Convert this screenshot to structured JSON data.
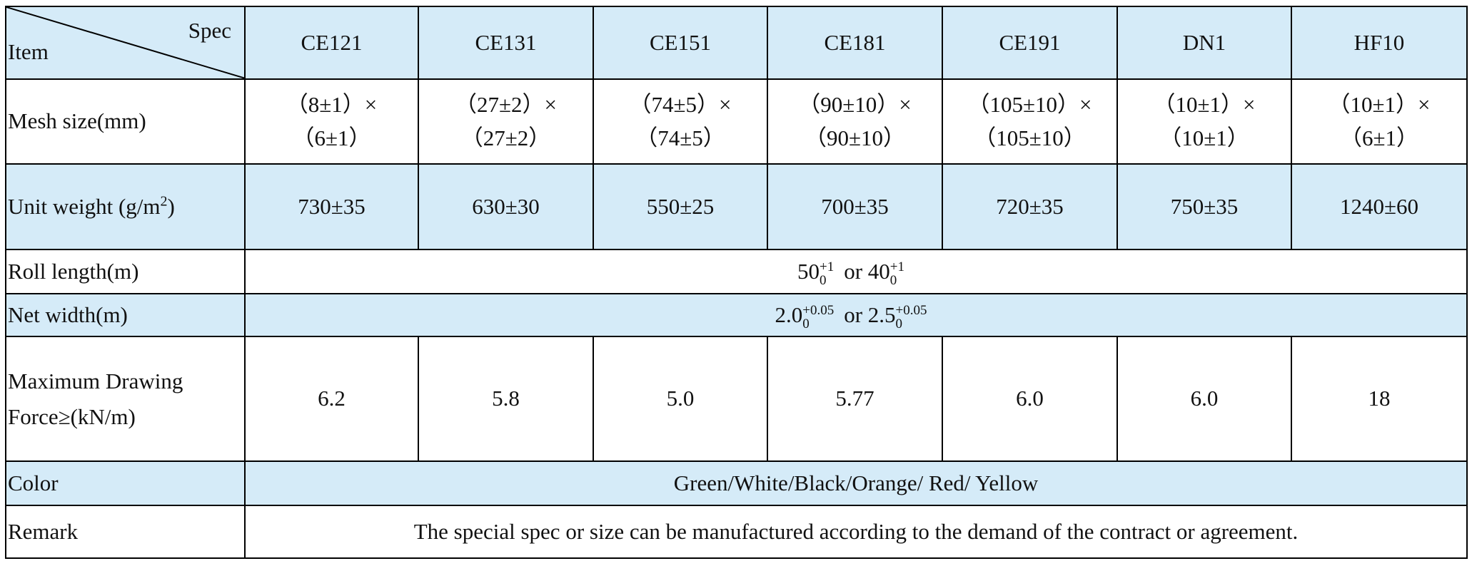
{
  "table": {
    "header": {
      "item": "Item",
      "spec": "Spec",
      "columns": [
        "CE121",
        "CE131",
        "CE151",
        "CE181",
        "CE191",
        "DN1",
        "HF10"
      ]
    },
    "rows": {
      "mesh_size": {
        "label": "Mesh size(mm)",
        "values": [
          [
            "（8±1）×",
            "（6±1）"
          ],
          [
            "（27±2）×",
            "（27±2）"
          ],
          [
            "（74±5）×",
            "（74±5）"
          ],
          [
            "（90±10）×",
            "（90±10）"
          ],
          [
            "（105±10）×",
            "（105±10）"
          ],
          [
            "（10±1）×",
            "（10±1）"
          ],
          [
            "（10±1）×",
            "（6±1）"
          ]
        ]
      },
      "unit_weight": {
        "label": "Unit weight (g/m",
        "label_sup": "2",
        "label_end": ")",
        "values": [
          "730±35",
          "630±30",
          "550±25",
          "700±35",
          "720±35",
          "750±35",
          "1240±60"
        ]
      },
      "roll_length": {
        "label": "Roll length(m)",
        "options": [
          {
            "base": "50",
            "upper": "+1",
            "lower": "0"
          },
          {
            "base": "40",
            "upper": "+1",
            "lower": "0"
          }
        ],
        "joiner": "or"
      },
      "net_width": {
        "label": "Net width(m)",
        "options": [
          {
            "base": "2.0",
            "upper": "+0.05",
            "lower": "0"
          },
          {
            "base": "2.5",
            "upper": "+0.05",
            "lower": "0"
          }
        ],
        "joiner": "or"
      },
      "max_force": {
        "label": "Maximum Drawing Force≥(kN/m)",
        "values": [
          "6.2",
          "5.8",
          "5.0",
          "5.77",
          "6.0",
          "6.0",
          "18"
        ]
      },
      "color": {
        "label": "Color",
        "value": "Green/White/Black/Orange/ Red/ Yellow"
      },
      "remark": {
        "label": "Remark",
        "value": "The special spec or size can be manufactured according to the demand of the contract or agreement."
      }
    }
  }
}
